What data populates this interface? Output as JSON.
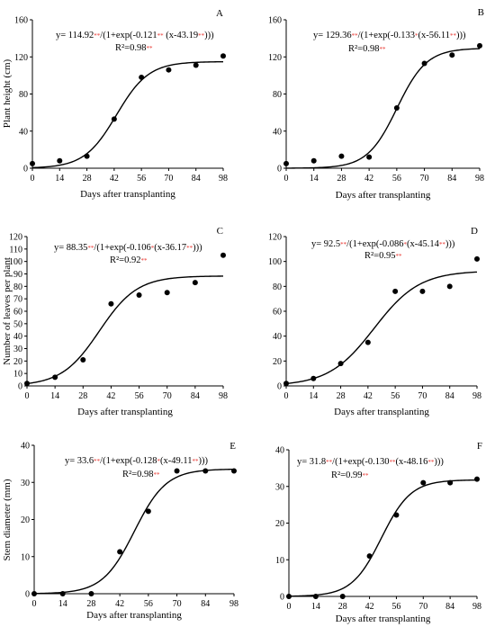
{
  "chart_data": [
    {
      "type": "scatter",
      "panel": "A",
      "ylabel": "Plant height (cm)",
      "xlabel": "Days after transplanting",
      "xlim": [
        0,
        98
      ],
      "ylim": [
        0,
        160
      ],
      "xticks": [
        0,
        14,
        28,
        42,
        56,
        70,
        84,
        98
      ],
      "yticks": [
        0,
        40,
        80,
        120,
        160
      ],
      "x": [
        0,
        14,
        28,
        42,
        56,
        70,
        84,
        98
      ],
      "y": [
        5,
        8,
        13,
        53,
        98,
        106,
        111,
        121
      ],
      "fit": {
        "a": 114.92,
        "b": 0.121,
        "c": 43.19
      },
      "equation": {
        "lead": "y= 114.92",
        "s1": "**",
        "mid": "/(1+exp(-0.121",
        "s2": "**",
        "mid2": " (x-43.19",
        "s3": "**",
        "tail": ")))",
        "r2": "R²=0.98",
        "r2s": "**"
      }
    },
    {
      "type": "scatter",
      "panel": "B",
      "ylabel": "",
      "xlabel": "Days after transplanting",
      "xlim": [
        0,
        98
      ],
      "ylim": [
        0,
        160
      ],
      "xticks": [
        0,
        14,
        28,
        42,
        56,
        70,
        84,
        98
      ],
      "yticks": [
        0,
        40,
        80,
        120,
        160
      ],
      "x": [
        0,
        14,
        28,
        42,
        56,
        70,
        84,
        98
      ],
      "y": [
        5,
        8,
        13,
        12,
        65,
        113,
        122,
        132
      ],
      "fit": {
        "a": 129.36,
        "b": 0.133,
        "c": 56.11
      },
      "equation": {
        "lead": "y= 129.36",
        "s1": "**",
        "mid": "/(1+exp(-0.133",
        "s2": "*",
        "mid2": "(x-56.11",
        "s3": "**",
        "tail": ")))",
        "r2": "R²=0.98",
        "r2s": "**"
      }
    },
    {
      "type": "scatter",
      "panel": "C",
      "ylabel": "Number of leaves per plant",
      "xlabel": "Days after transplanting",
      "xlim": [
        0,
        98
      ],
      "ylim": [
        0,
        120
      ],
      "xticks": [
        0,
        14,
        28,
        42,
        56,
        70,
        84,
        98
      ],
      "yticks": [
        0,
        10,
        20,
        30,
        40,
        50,
        60,
        70,
        80,
        90,
        100,
        110,
        120
      ],
      "x": [
        0,
        14,
        28,
        42,
        56,
        70,
        84,
        98
      ],
      "y": [
        2,
        7,
        21,
        66,
        73,
        75,
        83,
        105
      ],
      "fit": {
        "a": 88.35,
        "b": 0.106,
        "c": 36.17
      },
      "equation": {
        "lead": "y= 88.35",
        "s1": "**",
        "mid": "/(1+exp(-0.106",
        "s2": "*",
        "mid2": "(x-36.17",
        "s3": "**",
        "tail": ")))",
        "r2": "R²=0.92",
        "r2s": "**"
      }
    },
    {
      "type": "scatter",
      "panel": "D",
      "ylabel": "",
      "xlabel": "Days after transplanting",
      "xlim": [
        0,
        98
      ],
      "ylim": [
        0,
        120
      ],
      "xticks": [
        0,
        14,
        28,
        42,
        56,
        70,
        84,
        98
      ],
      "yticks": [
        0,
        20,
        40,
        60,
        80,
        100,
        120
      ],
      "x": [
        0,
        14,
        28,
        42,
        56,
        70,
        84,
        98
      ],
      "y": [
        2,
        6,
        18,
        35,
        76,
        76,
        80,
        102
      ],
      "fit": {
        "a": 92.5,
        "b": 0.086,
        "c": 45.14
      },
      "equation": {
        "lead": "y= 92.5",
        "s1": "**",
        "mid": "/(1+exp(-0.086",
        "s2": "*",
        "mid2": "(x-45.14",
        "s3": "**",
        "tail": ")))",
        "r2": "R²=0.95",
        "r2s": "**"
      }
    },
    {
      "type": "scatter",
      "panel": "E",
      "ylabel": "Stem diameter (mm)",
      "xlabel": "Days after transplanting",
      "xlim": [
        0,
        98
      ],
      "ylim": [
        0,
        40
      ],
      "xticks": [
        0,
        14,
        28,
        42,
        56,
        70,
        84,
        98
      ],
      "yticks": [
        0,
        10,
        20,
        30,
        40
      ],
      "x": [
        0,
        14,
        28,
        42,
        56,
        70,
        84,
        98
      ],
      "y": [
        0,
        0,
        0,
        11.3,
        22.2,
        33.1,
        33.1,
        33.1
      ],
      "fit": {
        "a": 33.6,
        "b": 0.128,
        "c": 49.11
      },
      "equation": {
        "lead": "y= 33.6",
        "s1": "**",
        "mid": "/(1+exp(-0.128",
        "s2": "*",
        "mid2": "(x-49.11",
        "s3": "**",
        "tail": ")))",
        "r2": "R²=0.98",
        "r2s": "**"
      }
    },
    {
      "type": "scatter",
      "panel": "F",
      "ylabel": "",
      "xlabel": "Days after transplanting",
      "xlim": [
        0,
        98
      ],
      "ylim": [
        0,
        40
      ],
      "xticks": [
        0,
        14,
        28,
        42,
        56,
        70,
        84,
        98
      ],
      "yticks": [
        0,
        10,
        20,
        30,
        40
      ],
      "x": [
        0,
        14,
        28,
        42,
        56,
        70,
        84,
        98
      ],
      "y": [
        0,
        0,
        0,
        11,
        22.2,
        31,
        31,
        32
      ],
      "fit": {
        "a": 31.8,
        "b": 0.13,
        "c": 48.16
      },
      "equation": {
        "lead": "y= 31.8",
        "s1": "**",
        "mid": "/(1+exp(-0.130",
        "s2": "**",
        "mid2": "(x-48.16",
        "s3": "**",
        "tail": ")))",
        "r2": "R²=0.99",
        "r2s": "**"
      }
    }
  ]
}
